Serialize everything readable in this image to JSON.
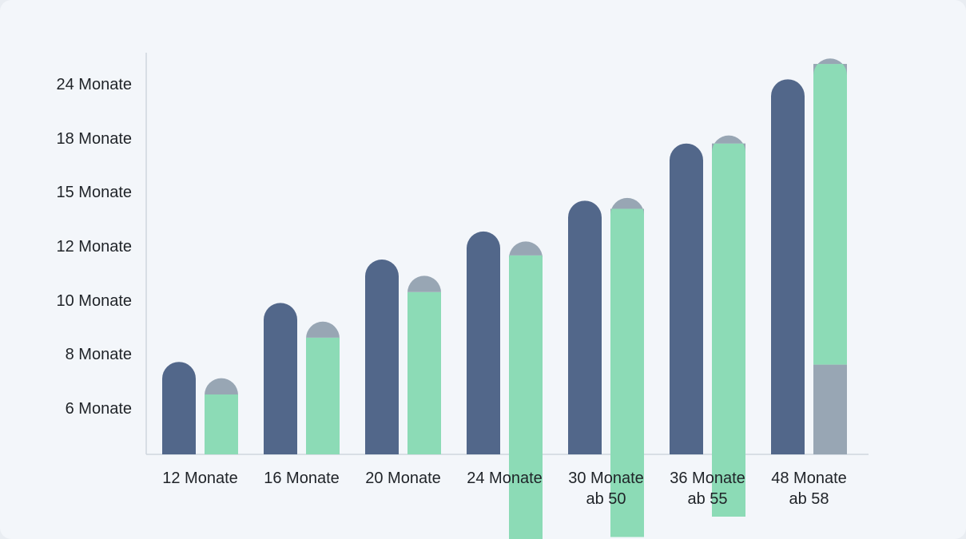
{
  "chart_data": {
    "type": "bar",
    "title": "",
    "xlabel": "",
    "ylabel": "",
    "y_tick_labels": [
      "6 Monate",
      "8 Monate",
      "10 Monate",
      "12 Monate",
      "15 Monate",
      "18 Monate",
      "24 Monate"
    ],
    "categories": [
      [
        "12 Monate"
      ],
      [
        "16 Monate"
      ],
      [
        "20 Monate"
      ],
      [
        "24 Monate"
      ],
      [
        "30 Monate",
        "ab 50"
      ],
      [
        "36 Monate",
        "ab 55"
      ],
      [
        "48 Monate",
        "ab 58"
      ]
    ],
    "series": [
      {
        "values": [
          7.7,
          9.9,
          11.5,
          12.8,
          14.5,
          17.7,
          24.5
        ],
        "color": "#52678a",
        "stacked": false
      },
      {
        "stacked": true,
        "segments": [
          {
            "values": [
              0,
              0,
              0,
              0.25,
              1.25,
              2.0,
              7.6
            ],
            "color": "#98a6b4"
          },
          {
            "values": [
              6.5,
              8.6,
              10.3,
              11.4,
              12.8,
              15.7,
              18.6
            ],
            "color": "#8cdbb6"
          },
          {
            "values": [
              0.6,
              0.6,
              0.6,
              0.6,
              0.6,
              0.6,
              0.6
            ],
            "color": "#98a6b4"
          }
        ]
      }
    ],
    "grid": false,
    "legend": "none"
  }
}
